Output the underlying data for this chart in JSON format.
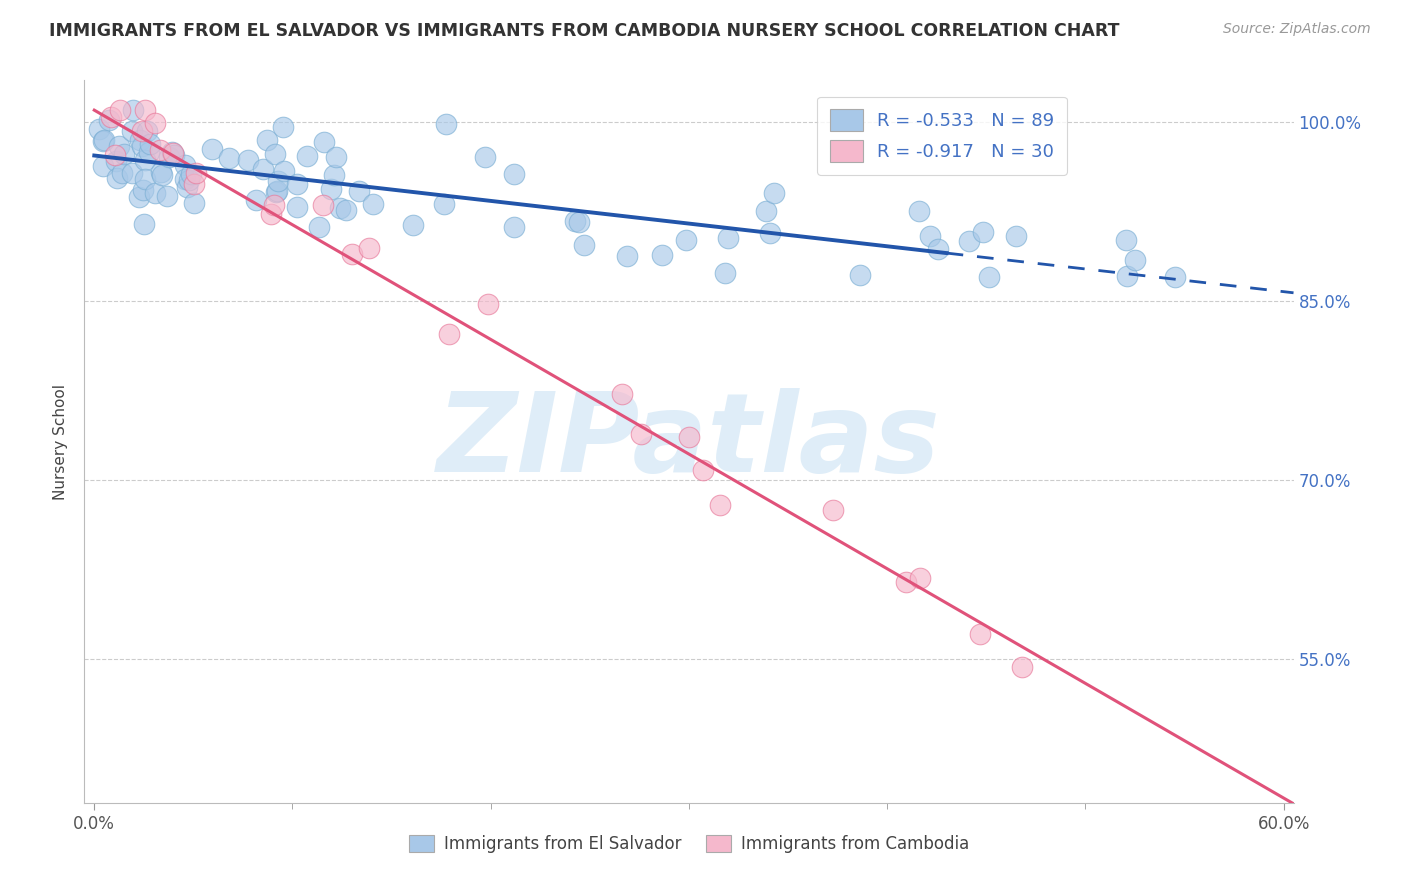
{
  "title": "IMMIGRANTS FROM EL SALVADOR VS IMMIGRANTS FROM CAMBODIA NURSERY SCHOOL CORRELATION CHART",
  "source": "Source: ZipAtlas.com",
  "ylabel": "Nursery School",
  "watermark": "ZIPatlas",
  "xlim": [
    -0.005,
    0.605
  ],
  "ylim": [
    0.43,
    1.035
  ],
  "ytick_pos": [
    0.55,
    0.7,
    0.85,
    1.0
  ],
  "ytick_labels": [
    "55.0%",
    "70.0%",
    "85.0%",
    "100.0%"
  ],
  "xtick_pos": [
    0.0,
    0.6
  ],
  "xtick_labels": [
    "0.0%",
    "60.0%"
  ],
  "blue_color": "#a8c8e8",
  "blue_edge_color": "#7bafd4",
  "blue_line_color": "#2255aa",
  "pink_color": "#f5b8cc",
  "pink_edge_color": "#e8799a",
  "pink_line_color": "#e0527a",
  "legend_text_color": "#4472c4",
  "right_axis_color": "#4472c4",
  "grid_color": "#cccccc",
  "es_line_solid_end": 0.43,
  "es_line_dash_start": 0.43,
  "es_line_dash_end": 0.605,
  "es_intercept": 0.972,
  "es_slope": -0.19,
  "cam_intercept": 1.01,
  "cam_slope": -0.96
}
